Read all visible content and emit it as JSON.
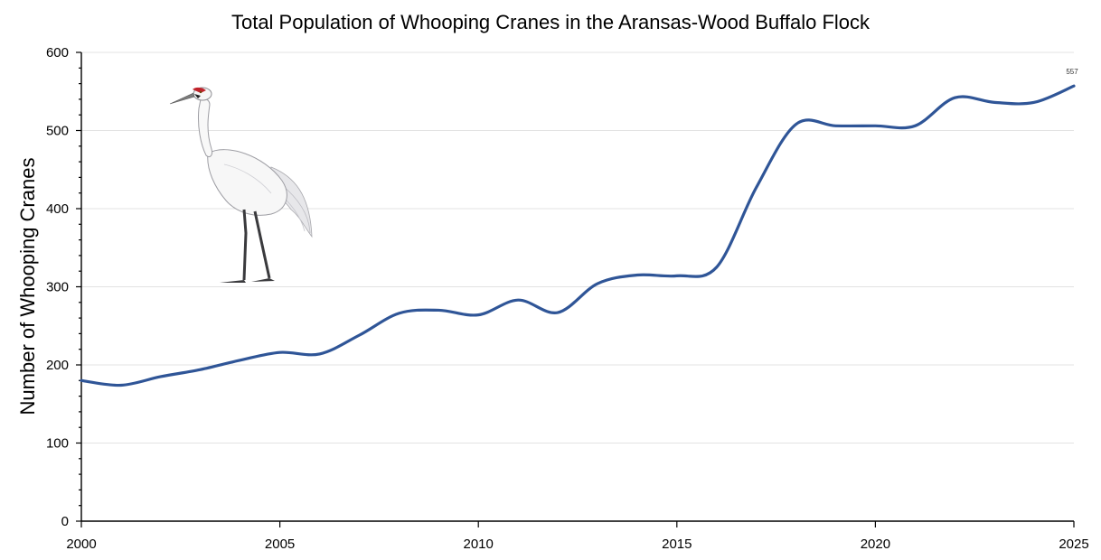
{
  "chart_data": {
    "type": "line",
    "title": "Total Population of Whooping Cranes in the Aransas-Wood Buffalo Flock",
    "xlabel": "",
    "ylabel": "Number of Whooping Cranes",
    "xlim": [
      2000,
      2025
    ],
    "ylim": [
      0,
      600
    ],
    "x_ticks": [
      2000,
      2005,
      2010,
      2015,
      2020,
      2025
    ],
    "y_ticks": [
      0,
      100,
      200,
      300,
      400,
      500,
      600
    ],
    "grid": true,
    "line_color": "#2f5597",
    "series": [
      {
        "x": [
          2000,
          2001,
          2002,
          2003,
          2004,
          2005,
          2006,
          2007,
          2008,
          2009,
          2010,
          2011,
          2012,
          2013,
          2014,
          2015,
          2016,
          2017,
          2018,
          2019,
          2020,
          2021,
          2022,
          2023,
          2024,
          2025
        ],
        "values": [
          180,
          174,
          185,
          194,
          206,
          216,
          214,
          238,
          266,
          270,
          264,
          283,
          267,
          304,
          315,
          314,
          325,
          427,
          508,
          506,
          506,
          506,
          542,
          536,
          536,
          557
        ]
      }
    ],
    "annotations": [
      {
        "x": 2025,
        "value": 557,
        "label": "557"
      }
    ],
    "illustration": "whooping-crane-illustration"
  }
}
